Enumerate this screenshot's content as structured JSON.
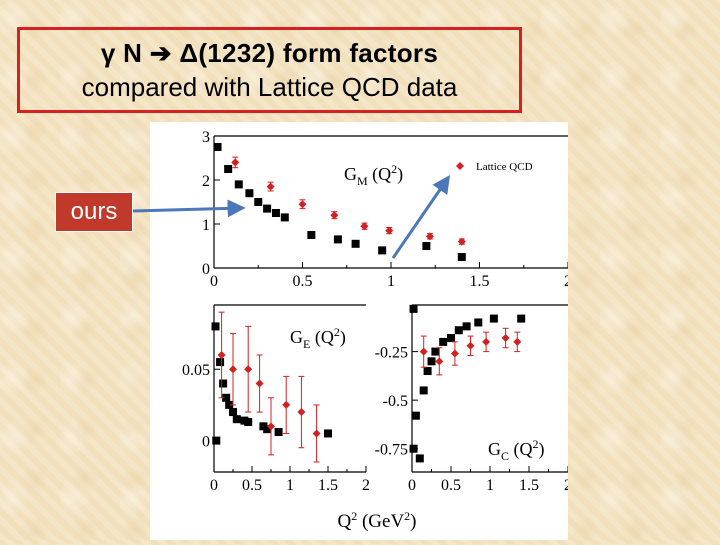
{
  "title": {
    "line1": "γ N ➔ Δ(1232) form factors",
    "line2": "compared with Lattice QCD data"
  },
  "callout": {
    "label": "ours"
  },
  "colors": {
    "ours": "#000000",
    "lattice": "#d42020",
    "arrow": "#4a78b8",
    "title_border": "#d82020"
  },
  "chart_data": [
    {
      "type": "scatter",
      "panel": "top",
      "annotation": "G_M (Q^2)",
      "xlim": [
        0,
        2
      ],
      "ylim": [
        0,
        3
      ],
      "xticks": [
        "0",
        "0.5",
        "1",
        "1.5",
        "2"
      ],
      "yticks": [
        "0",
        "1",
        "2",
        "3"
      ],
      "legend": {
        "label": "Lattice QCD",
        "position": "top-right"
      },
      "series": [
        {
          "marker": "square",
          "points": [
            [
              0.02,
              2.75
            ],
            [
              0.08,
              2.25
            ],
            [
              0.14,
              1.9
            ],
            [
              0.2,
              1.7
            ],
            [
              0.25,
              1.5
            ],
            [
              0.3,
              1.35
            ],
            [
              0.35,
              1.25
            ],
            [
              0.4,
              1.15
            ],
            [
              0.55,
              0.75
            ],
            [
              0.7,
              0.65
            ],
            [
              0.8,
              0.55
            ],
            [
              0.95,
              0.4
            ],
            [
              1.2,
              0.5
            ],
            [
              1.4,
              0.25
            ]
          ]
        },
        {
          "name": "Lattice QCD",
          "marker": "diamond",
          "errorbars": true,
          "points": [
            [
              0.12,
              2.4,
              0.12
            ],
            [
              0.32,
              1.85,
              0.1
            ],
            [
              0.5,
              1.45,
              0.1
            ],
            [
              0.68,
              1.2,
              0.08
            ],
            [
              0.85,
              0.95,
              0.07
            ],
            [
              0.99,
              0.85,
              0.07
            ],
            [
              1.22,
              0.72,
              0.06
            ],
            [
              1.4,
              0.6,
              0.06
            ]
          ]
        }
      ]
    },
    {
      "type": "scatter",
      "panel": "bottom-left",
      "annotation": "G_E (Q^2)",
      "xlim": [
        0,
        2
      ],
      "ylim": [
        -0.022,
        0.095
      ],
      "xticks": [
        "0",
        "0.5",
        "1",
        "1.5",
        "2"
      ],
      "yticks": [
        "0",
        "0.05"
      ],
      "series": [
        {
          "marker": "square",
          "points": [
            [
              0.02,
              0.08
            ],
            [
              0.03,
              0.0
            ],
            [
              0.08,
              0.055
            ],
            [
              0.12,
              0.04
            ],
            [
              0.16,
              0.03
            ],
            [
              0.2,
              0.025
            ],
            [
              0.25,
              0.02
            ],
            [
              0.3,
              0.015
            ],
            [
              0.4,
              0.014
            ],
            [
              0.45,
              0.013
            ],
            [
              0.65,
              0.01
            ],
            [
              0.7,
              0.008
            ],
            [
              0.85,
              0.006
            ],
            [
              1.5,
              0.005
            ]
          ]
        },
        {
          "name": "Lattice QCD",
          "marker": "diamond",
          "errorbars": true,
          "points": [
            [
              0.1,
              0.06,
              0.03
            ],
            [
              0.25,
              0.05,
              0.025
            ],
            [
              0.45,
              0.05,
              0.03
            ],
            [
              0.6,
              0.04,
              0.02
            ],
            [
              0.75,
              0.01,
              0.02
            ],
            [
              0.95,
              0.025,
              0.02
            ],
            [
              1.15,
              0.02,
              0.025
            ],
            [
              1.35,
              0.005,
              0.02
            ]
          ]
        }
      ]
    },
    {
      "type": "scatter",
      "panel": "bottom-right",
      "annotation": "G_C (Q^2)",
      "xlim": [
        0,
        2
      ],
      "ylim": [
        -0.87,
        -0.01
      ],
      "xticks": [
        "0",
        "0.5",
        "1",
        "1.5",
        "2"
      ],
      "yticks": [
        "-0.25",
        "-0.5",
        "-0.75"
      ],
      "series": [
        {
          "marker": "square",
          "points": [
            [
              0.02,
              -0.75
            ],
            [
              0.05,
              -0.58
            ],
            [
              0.1,
              -0.8
            ],
            [
              0.15,
              -0.45
            ],
            [
              0.2,
              -0.35
            ],
            [
              0.25,
              -0.3
            ],
            [
              0.3,
              -0.25
            ],
            [
              0.4,
              -0.2
            ],
            [
              0.5,
              -0.18
            ],
            [
              0.6,
              -0.14
            ],
            [
              0.7,
              -0.12
            ],
            [
              0.85,
              -0.1
            ],
            [
              1.05,
              -0.08
            ],
            [
              1.4,
              -0.08
            ],
            [
              0.02,
              -0.03
            ]
          ]
        },
        {
          "name": "Lattice QCD",
          "marker": "diamond",
          "errorbars": true,
          "points": [
            [
              0.15,
              -0.25,
              0.08
            ],
            [
              0.35,
              -0.3,
              0.07
            ],
            [
              0.55,
              -0.26,
              0.06
            ],
            [
              0.75,
              -0.22,
              0.05
            ],
            [
              0.95,
              -0.2,
              0.05
            ],
            [
              1.2,
              -0.18,
              0.05
            ],
            [
              1.35,
              -0.2,
              0.05
            ]
          ]
        }
      ]
    }
  ],
  "shared_xlabel": "Q^2 (GeV^2)"
}
